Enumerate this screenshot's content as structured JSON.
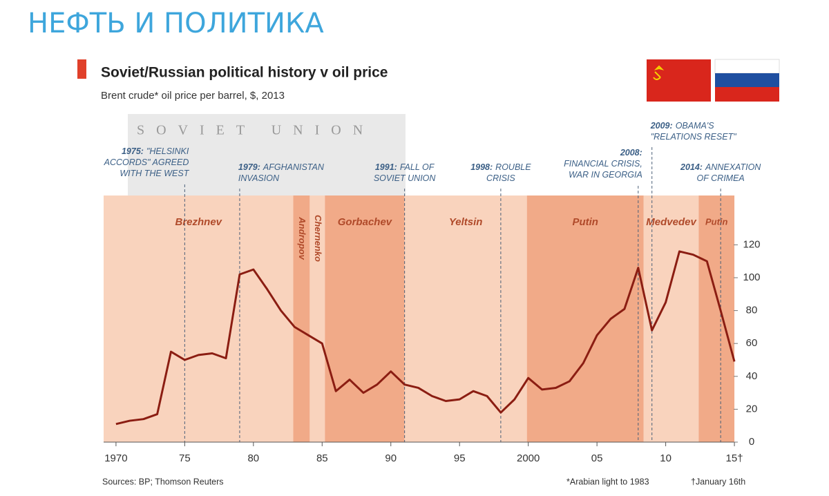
{
  "slide_title": "НЕФТЬ И ПОЛИТИКА",
  "chart_data": {
    "type": "line",
    "title": "Soviet/Russian political history v oil price",
    "subtitle": "Brent crude* oil price per barrel, $, 2013",
    "era_label": "SOVIET UNION",
    "sources": "Sources: BP; Thomson Reuters",
    "footnotes": [
      "*Arabian light to 1983",
      "†January 16th"
    ],
    "x": [
      1970,
      1971,
      1972,
      1973,
      1974,
      1975,
      1976,
      1977,
      1978,
      1979,
      1980,
      1981,
      1982,
      1983,
      1984,
      1985,
      1986,
      1987,
      1988,
      1989,
      1990,
      1991,
      1992,
      1993,
      1994,
      1995,
      1996,
      1997,
      1998,
      1999,
      2000,
      2001,
      2002,
      2003,
      2004,
      2005,
      2006,
      2007,
      2008,
      2009,
      2010,
      2011,
      2012,
      2013,
      2014,
      2015
    ],
    "series": [
      {
        "name": "Oil price",
        "color": "#8b1d12",
        "values": [
          11,
          13,
          14,
          17,
          55,
          50,
          53,
          54,
          51,
          102,
          105,
          93,
          80,
          70,
          65,
          60,
          31,
          38,
          30,
          35,
          43,
          35,
          33,
          28,
          25,
          26,
          31,
          28,
          18,
          26,
          39,
          32,
          33,
          37,
          48,
          65,
          75,
          81,
          106,
          68,
          85,
          116,
          114,
          110,
          80,
          49
        ]
      }
    ],
    "xlim": [
      1969.1,
      2015.6
    ],
    "ylim": [
      0,
      150
    ],
    "xticks": [
      {
        "value": 1970,
        "label": "1970"
      },
      {
        "value": 1975,
        "label": "75"
      },
      {
        "value": 1980,
        "label": "80"
      },
      {
        "value": 1985,
        "label": "85"
      },
      {
        "value": 1990,
        "label": "90"
      },
      {
        "value": 1995,
        "label": "95"
      },
      {
        "value": 2000,
        "label": "2000"
      },
      {
        "value": 2005,
        "label": "05"
      },
      {
        "value": 2010,
        "label": "10"
      },
      {
        "value": 2015,
        "label": "15†"
      }
    ],
    "yticks": [
      0,
      20,
      40,
      60,
      80,
      100,
      120
    ],
    "periods": [
      {
        "name": "Brezhnev",
        "start": 1969.1,
        "end": 1982.9,
        "color": "#f9d3bd"
      },
      {
        "name": "Andropov",
        "start": 1982.9,
        "end": 1984.1,
        "color": "#f1aa88"
      },
      {
        "name": "Chernenko",
        "start": 1984.1,
        "end": 1985.2,
        "color": "#f9d3bd"
      },
      {
        "name": "Gorbachev",
        "start": 1985.2,
        "end": 1991,
        "color": "#f1aa88"
      },
      {
        "name": "Yeltsin",
        "start": 1991,
        "end": 1999.9,
        "color": "#f9d3bd"
      },
      {
        "name": "Putin",
        "start": 1999.9,
        "end": 2008.4,
        "color": "#f1aa88"
      },
      {
        "name": "Medvedev",
        "start": 2008.4,
        "end": 2012.4,
        "color": "#f9d3bd"
      },
      {
        "name": "Putin",
        "start": 2012.4,
        "end": 2015,
        "color": "#f1aa88"
      }
    ],
    "events": [
      {
        "x": 1975,
        "year": "1975:",
        "lines": [
          "\"Helsinki",
          "accords\" agreed",
          "with the west"
        ]
      },
      {
        "x": 1979,
        "year": "1979:",
        "lines": [
          "Afghanistan",
          "invasion"
        ]
      },
      {
        "x": 1991,
        "year": "1991:",
        "lines": [
          "Fall of",
          "Soviet Union"
        ]
      },
      {
        "x": 1998,
        "year": "1998:",
        "lines": [
          "Rouble",
          "crisis"
        ]
      },
      {
        "x": 2008,
        "year": "2008:",
        "lines": [
          "",
          "Financial crisis,",
          "war in Georgia"
        ]
      },
      {
        "x": 2009,
        "year": "2009:",
        "lines": [
          "Obama's",
          "\"relations reset\""
        ]
      },
      {
        "x": 2014,
        "year": "2014:",
        "lines": [
          "Annexation",
          "of Crimea"
        ]
      }
    ]
  }
}
